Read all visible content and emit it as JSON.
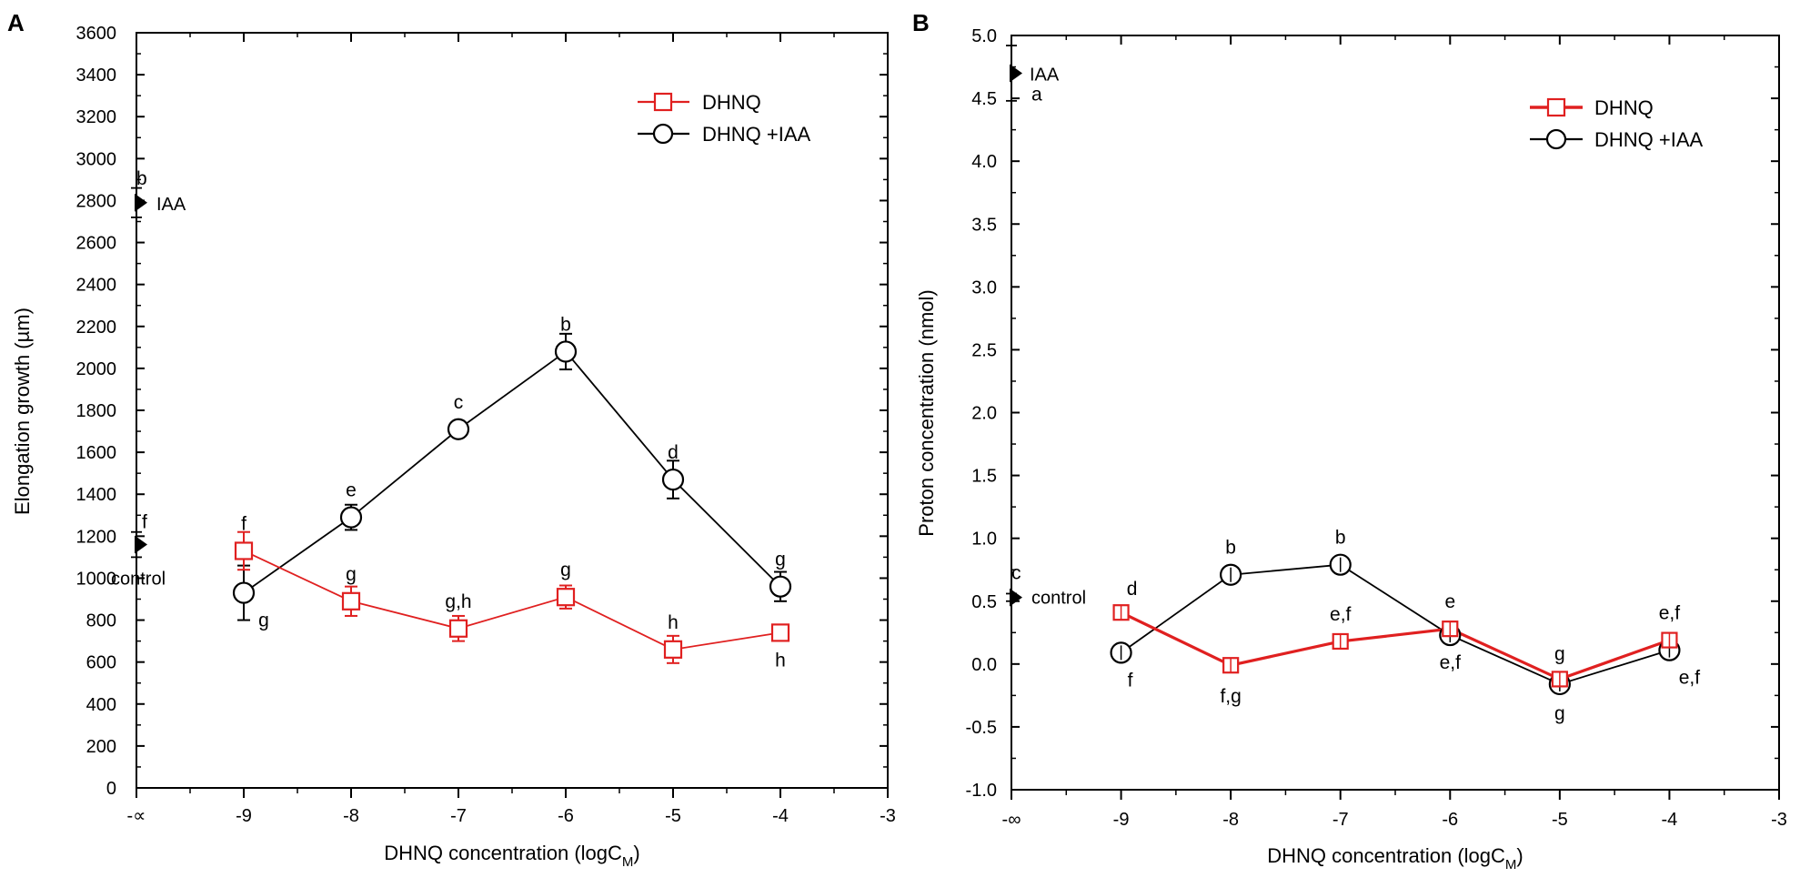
{
  "colors": {
    "dhnq": "#e02020",
    "iaa": "#000000"
  },
  "chart_data": [
    {
      "type": "line",
      "panel": "A",
      "xlabel": "DHNQ concentration (logC",
      "xlabel_sub": "M",
      "xlabel_close": ")",
      "ylabel": "Elongation growth (µm)",
      "xlim": [
        -10.0,
        -3
      ],
      "ylim": [
        0,
        3600
      ],
      "yticks": [
        "0",
        "200",
        "400",
        "600",
        "800",
        "1000",
        "1200",
        "1400",
        "1600",
        "1800",
        "2000",
        "2200",
        "2400",
        "2600",
        "2800",
        "3000",
        "3200",
        "3400",
        "3600"
      ],
      "xticks": [
        {
          "x": -10,
          "label": "-∝"
        },
        {
          "x": -9,
          "label": "-9"
        },
        {
          "x": -8,
          "label": "-8"
        },
        {
          "x": -7,
          "label": "-7"
        },
        {
          "x": -6,
          "label": "-6"
        },
        {
          "x": -5,
          "label": "-5"
        },
        {
          "x": -4,
          "label": "-4"
        },
        {
          "x": -3,
          "label": "-3"
        }
      ],
      "legend_position": "top-right",
      "series": [
        {
          "name": "DHNQ",
          "marker": "square",
          "color": "dhnq",
          "x": [
            -9,
            -8,
            -7,
            -6,
            -5,
            -4
          ],
          "y": [
            1130,
            890,
            760,
            910,
            660,
            740
          ],
          "err": [
            90,
            70,
            60,
            55,
            65,
            25
          ],
          "labels": [
            "f",
            "g",
            "g,h",
            "g",
            "h",
            "h"
          ]
        },
        {
          "name": "DHNQ +IAA",
          "marker": "circle",
          "color": "iaa",
          "x": [
            -9,
            -8,
            -7,
            -6,
            -5,
            -4
          ],
          "y": [
            930,
            1290,
            1710,
            2080,
            1470,
            960
          ],
          "err": [
            130,
            60,
            30,
            85,
            90,
            70
          ],
          "labels": [
            "g",
            "e",
            "c",
            "b",
            "d",
            "g"
          ]
        }
      ],
      "references": [
        {
          "name": "IAA",
          "x": -10,
          "y": 2790,
          "err": 70,
          "label": "IAA",
          "letter": "b"
        },
        {
          "name": "control",
          "x": -10,
          "y": 1160,
          "err": 60,
          "label": "control",
          "letter": "f"
        }
      ]
    },
    {
      "type": "line",
      "panel": "B",
      "xlabel": "DHNQ concentration (logC",
      "xlabel_sub": "M",
      "xlabel_close": ")",
      "ylabel": "Proton concentration (nmol)",
      "xlim": [
        -10.0,
        -3
      ],
      "ylim": [
        -1.0,
        5.0
      ],
      "yticks": [
        "-1.0",
        "-0.5",
        "0.0",
        "0.5",
        "1.0",
        "1.5",
        "2.0",
        "2.5",
        "3.0",
        "3.5",
        "4.0",
        "4.5",
        "5.0"
      ],
      "xticks": [
        {
          "x": -10,
          "label": "-∞"
        },
        {
          "x": -9,
          "label": "-9"
        },
        {
          "x": -8,
          "label": "-8"
        },
        {
          "x": -7,
          "label": "-7"
        },
        {
          "x": -6,
          "label": "-6"
        },
        {
          "x": -5,
          "label": "-5"
        },
        {
          "x": -4,
          "label": "-4"
        },
        {
          "x": -3,
          "label": "-3"
        }
      ],
      "legend_position": "top-right",
      "series": [
        {
          "name": "DHNQ",
          "marker": "square",
          "color": "dhnq",
          "x": [
            -9,
            -8,
            -7,
            -6,
            -5,
            -4
          ],
          "y": [
            0.41,
            -0.01,
            0.18,
            0.28,
            -0.12,
            0.19
          ],
          "err": [
            0.04,
            0.04,
            0.04,
            0.04,
            0.04,
            0.04
          ],
          "labels": [
            "d",
            "f,g",
            "e,f",
            "e",
            "g",
            "e,f"
          ]
        },
        {
          "name": "DHNQ +IAA",
          "marker": "circle",
          "color": "iaa",
          "x": [
            -9,
            -8,
            -7,
            -6,
            -5,
            -4
          ],
          "y": [
            0.09,
            0.71,
            0.79,
            0.23,
            -0.16,
            0.11
          ],
          "err": [
            0.04,
            0.04,
            0.04,
            0.04,
            0.04,
            0.04
          ],
          "labels": [
            "f",
            "b",
            "b",
            "e,f",
            "g",
            "e,f"
          ]
        }
      ],
      "references": [
        {
          "name": "IAA",
          "x": -10,
          "y": 4.7,
          "err": 0.22,
          "label": "IAA",
          "letter": "a"
        },
        {
          "name": "control",
          "x": -10,
          "y": 0.53,
          "err": 0.03,
          "label": "control",
          "letter": "c"
        }
      ]
    }
  ]
}
